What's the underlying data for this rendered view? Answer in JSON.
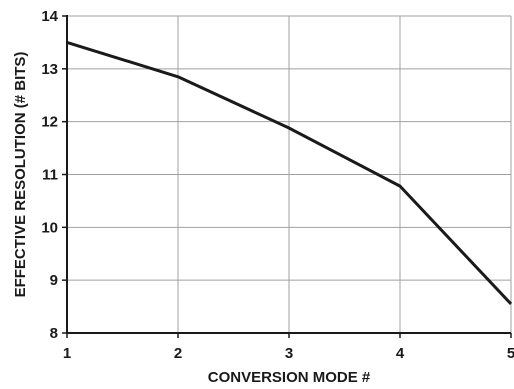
{
  "chart_data": {
    "type": "line",
    "title": "",
    "xlabel": "CONVERSION MODE #",
    "ylabel": "EFFECTIVE RESOLUTION (# BITS)",
    "x": [
      1,
      2,
      3,
      4,
      5
    ],
    "series": [
      {
        "values": [
          13.5,
          12.85,
          11.88,
          10.78,
          8.55
        ]
      }
    ],
    "xlim": [
      1,
      5
    ],
    "ylim": [
      8,
      14
    ],
    "xticks": [
      1,
      2,
      3,
      4,
      5
    ],
    "yticks": [
      8,
      9,
      10,
      11,
      12,
      13,
      14
    ],
    "xtick_labels": [
      "1",
      "2",
      "3",
      "4",
      "5"
    ],
    "ytick_labels": [
      "8",
      "9",
      "10",
      "11",
      "12",
      "13",
      "14"
    ],
    "grid": true,
    "legend": "none",
    "colors": {
      "line": "#1a1a1a",
      "grid": "#a0a0a0",
      "axis": "#1a1a1a"
    }
  }
}
